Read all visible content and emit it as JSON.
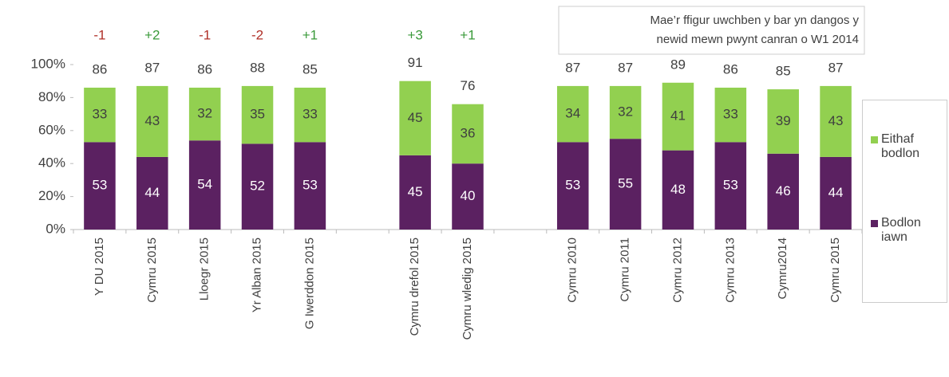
{
  "chart_data": {
    "type": "stacked_bar",
    "categories": [
      "Y DU 2015",
      "Cymru 2015",
      "Lloegr 2015",
      "Yr Alban 2015",
      "G Iwerddon 2015",
      null,
      "Cymru drefol 2015",
      "Cymru wledig 2015",
      null,
      "Cymru 2010",
      "Cymru 2011",
      "Cymru 2012",
      "Cymru 2013",
      "Cymru2014",
      "Cymru 2015"
    ],
    "series": [
      {
        "name": "Bodlon iawn",
        "color": "#5b2161",
        "label_color": "#ffffff",
        "values": [
          53,
          44,
          54,
          52,
          53,
          null,
          45,
          40,
          null,
          53,
          55,
          48,
          53,
          46,
          44
        ]
      },
      {
        "name": "Eithaf bodlon",
        "color": "#92d050",
        "label_color": "#3f3f3f",
        "values": [
          33,
          43,
          32,
          35,
          33,
          null,
          45,
          36,
          null,
          34,
          32,
          41,
          33,
          39,
          43
        ]
      }
    ],
    "totals": [
      86,
      87,
      86,
      88,
      85,
      null,
      91,
      76,
      null,
      87,
      87,
      89,
      86,
      85,
      87
    ],
    "changes": [
      -1,
      2,
      -1,
      -2,
      1,
      null,
      3,
      1,
      null,
      null,
      null,
      null,
      null,
      null,
      null
    ],
    "change_labels": [
      "-1",
      "+2",
      "-1",
      "-2",
      "+1",
      null,
      "+3",
      "+1",
      null,
      null,
      null,
      null,
      null,
      null,
      null
    ],
    "positive_color": "#3a9a3a",
    "negative_color": "#b03028",
    "annotation": [
      "Mae’r ffigur uwchben y bar yn dangos y",
      "newid mewn pwynt canran o W1 2014"
    ],
    "ylim": [
      0,
      100
    ],
    "yticks": [
      {
        "value": 0,
        "label": "0%"
      },
      {
        "value": 20,
        "label": "20%"
      },
      {
        "value": 40,
        "label": "40%"
      },
      {
        "value": 60,
        "label": "60%"
      },
      {
        "value": 80,
        "label": "80%"
      },
      {
        "value": 100,
        "label": "100%"
      }
    ],
    "legend": "right"
  }
}
